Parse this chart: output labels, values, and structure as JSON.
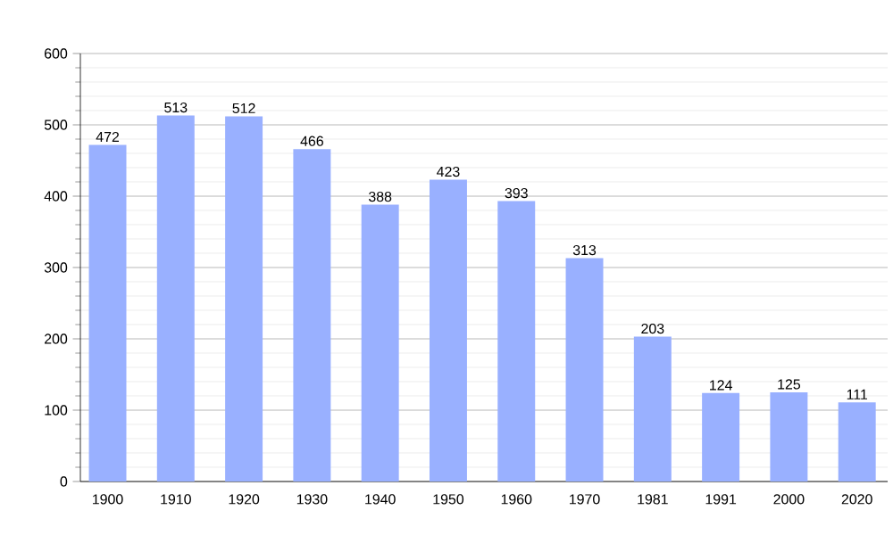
{
  "chart_data": {
    "type": "bar",
    "categories": [
      "1900",
      "1910",
      "1920",
      "1930",
      "1940",
      "1950",
      "1960",
      "1970",
      "1981",
      "1991",
      "2000",
      "2020"
    ],
    "values": [
      472,
      513,
      512,
      466,
      388,
      423,
      393,
      313,
      203,
      124,
      125,
      111
    ],
    "color": "#99b0ff",
    "ylim": [
      0,
      600
    ],
    "yticks": [
      0,
      100,
      200,
      300,
      400,
      500,
      600
    ],
    "grid": "y",
    "data_labels": true
  }
}
